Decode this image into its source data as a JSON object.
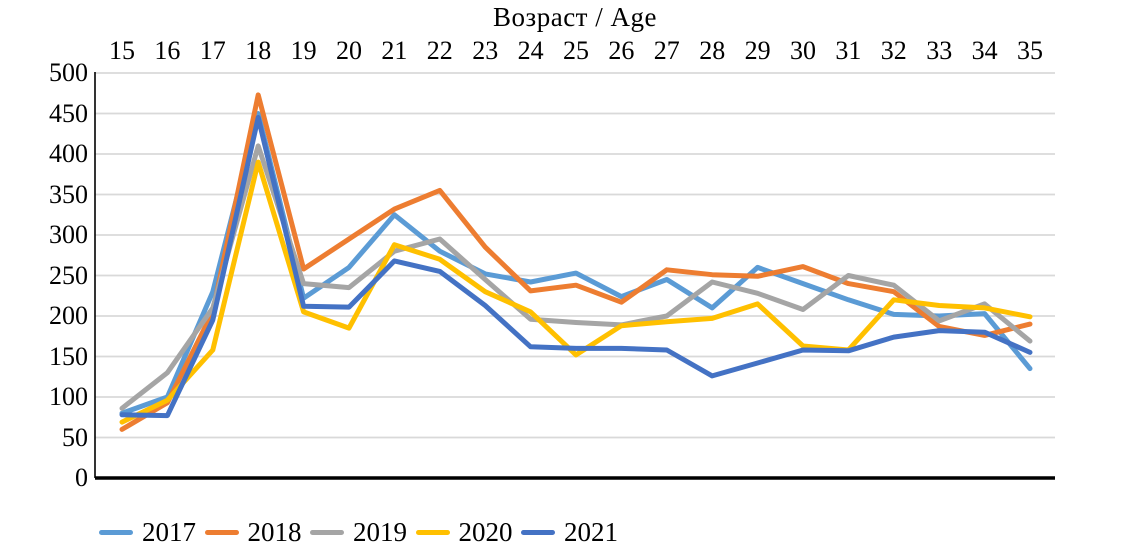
{
  "chart_data": {
    "type": "line",
    "title": "Возраст / Age",
    "x_axis": {
      "position": "top",
      "categories": [
        "15",
        "16",
        "17",
        "18",
        "19",
        "20",
        "21",
        "22",
        "23",
        "24",
        "25",
        "26",
        "27",
        "28",
        "29",
        "30",
        "31",
        "32",
        "33",
        "34",
        "35"
      ]
    },
    "y_axis": {
      "min": 0,
      "max": 500,
      "step": 50,
      "ticks": [
        "500",
        "450",
        "400",
        "350",
        "300",
        "250",
        "200",
        "150",
        "100",
        "50",
        "0"
      ]
    },
    "grid": true,
    "grid_color": "#D9D9D9",
    "axis_color": "#000000",
    "legend_position": "bottom",
    "series": [
      {
        "name": "2017",
        "color": "#5B9BD5",
        "values": [
          80,
          100,
          230,
          450,
          222,
          260,
          325,
          280,
          252,
          242,
          253,
          224,
          245,
          210,
          260,
          240,
          220,
          202,
          200,
          203,
          135
        ]
      },
      {
        "name": "2018",
        "color": "#ED7D31",
        "values": [
          60,
          93,
          205,
          473,
          258,
          295,
          332,
          355,
          285,
          231,
          238,
          217,
          257,
          251,
          249,
          261,
          240,
          230,
          187,
          176,
          190
        ]
      },
      {
        "name": "2019",
        "color": "#A5A5A5",
        "values": [
          86,
          130,
          210,
          410,
          240,
          235,
          280,
          295,
          245,
          196,
          192,
          189,
          200,
          242,
          228,
          208,
          250,
          238,
          194,
          215,
          169
        ]
      },
      {
        "name": "2020",
        "color": "#FFC000",
        "values": [
          69,
          96,
          158,
          390,
          205,
          185,
          288,
          270,
          230,
          205,
          152,
          188,
          193,
          197,
          215,
          163,
          158,
          220,
          213,
          210,
          199
        ]
      },
      {
        "name": "2021",
        "color": "#4472C4",
        "values": [
          78,
          77,
          195,
          445,
          212,
          211,
          268,
          255,
          213,
          162,
          160,
          160,
          158,
          126,
          142,
          158,
          157,
          174,
          182,
          180,
          155
        ]
      }
    ]
  }
}
